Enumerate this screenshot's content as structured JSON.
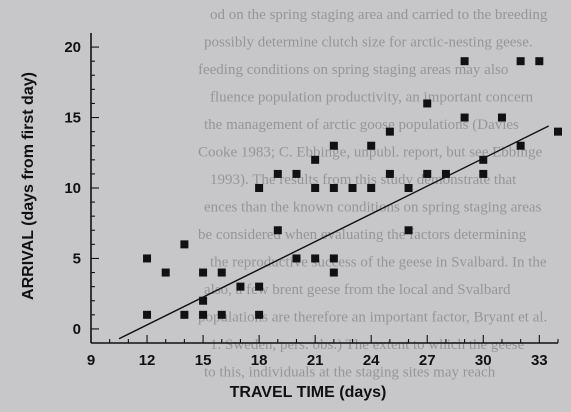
{
  "chart_data": {
    "type": "scatter",
    "title": "",
    "xlabel": "TRAVEL TIME (days)",
    "ylabel": "ARRIVAL (days from first day)",
    "xlim": [
      9,
      34
    ],
    "ylim": [
      -1,
      21
    ],
    "xticks": [
      9,
      12,
      15,
      18,
      21,
      24,
      27,
      30,
      33
    ],
    "yticks": [
      0,
      5,
      10,
      15,
      20
    ],
    "grid": false,
    "legend": "none",
    "marker_color": "#111111",
    "trendline": {
      "type": "linear fit",
      "x": [
        10.5,
        33.5
      ],
      "y": [
        -0.7,
        14.4
      ]
    },
    "points": [
      {
        "x": 12,
        "y": 1
      },
      {
        "x": 12,
        "y": 5
      },
      {
        "x": 13,
        "y": 4
      },
      {
        "x": 14,
        "y": 6
      },
      {
        "x": 14,
        "y": 1
      },
      {
        "x": 15,
        "y": 2
      },
      {
        "x": 15,
        "y": 1
      },
      {
        "x": 15,
        "y": 4
      },
      {
        "x": 16,
        "y": 1
      },
      {
        "x": 16,
        "y": 4
      },
      {
        "x": 17,
        "y": 3
      },
      {
        "x": 18,
        "y": 10
      },
      {
        "x": 18,
        "y": 1
      },
      {
        "x": 18,
        "y": 3
      },
      {
        "x": 19,
        "y": 11
      },
      {
        "x": 19,
        "y": 7
      },
      {
        "x": 20,
        "y": 11
      },
      {
        "x": 20,
        "y": 5
      },
      {
        "x": 21,
        "y": 10
      },
      {
        "x": 21,
        "y": 12
      },
      {
        "x": 21,
        "y": 5
      },
      {
        "x": 22,
        "y": 10
      },
      {
        "x": 22,
        "y": 13
      },
      {
        "x": 22,
        "y": 5
      },
      {
        "x": 22,
        "y": 4
      },
      {
        "x": 23,
        "y": 10
      },
      {
        "x": 24,
        "y": 10
      },
      {
        "x": 24,
        "y": 13
      },
      {
        "x": 25,
        "y": 11
      },
      {
        "x": 25,
        "y": 14
      },
      {
        "x": 26,
        "y": 10
      },
      {
        "x": 26,
        "y": 7
      },
      {
        "x": 27,
        "y": 16
      },
      {
        "x": 27,
        "y": 11
      },
      {
        "x": 28,
        "y": 11
      },
      {
        "x": 29,
        "y": 19
      },
      {
        "x": 29,
        "y": 15
      },
      {
        "x": 30,
        "y": 11
      },
      {
        "x": 30,
        "y": 12
      },
      {
        "x": 31,
        "y": 15
      },
      {
        "x": 32,
        "y": 19
      },
      {
        "x": 32,
        "y": 13
      },
      {
        "x": 33,
        "y": 19
      },
      {
        "x": 34,
        "y": 14
      }
    ]
  },
  "background_text": [
    "od on the spring staging area and carried to the breeding",
    "possibly determine clutch size for arctic-nesting geese.",
    "feeding conditions on spring staging areas may also",
    "fluence population productivity, an important concern",
    "the management of arctic goose populations (Davies",
    "Cooke 1983; C. Ebbinge, unpubl. report, but see Ebbinge",
    "1993). The results from this study demonstrate that",
    "ences than the known conditions on spring staging areas",
    "be considered when evaluating the factors determining",
    "the reproductive success of the geese in Svalbard. In the",
    "also, a few brent geese from the local and Svalbard",
    "populations are therefore an important factor, Bryant et al.",
    "1. Sweden, pers. obs.) The extent to which the geese",
    "to this, individuals at the staging sites may reach"
  ]
}
